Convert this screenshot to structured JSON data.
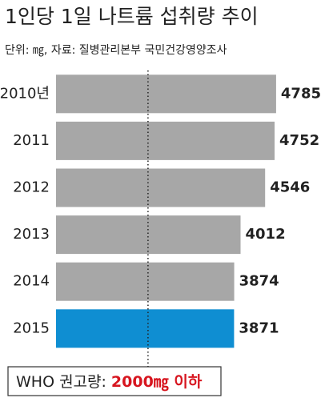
{
  "chart_data": {
    "type": "bar",
    "orientation": "horizontal",
    "title": "1인당 1일 나트륨 섭취량 추이",
    "subtitle": "단위: ㎎, 자료: 질병관리본부 국민건강영양조사",
    "categories": [
      "2010년",
      "2011",
      "2012",
      "2013",
      "2014",
      "2015"
    ],
    "values": [
      4785,
      4752,
      4546,
      4012,
      3874,
      3871
    ],
    "colors": [
      "#a7a7a7",
      "#a7a7a7",
      "#a7a7a7",
      "#a7a7a7",
      "#a7a7a7",
      "#0f8ed2"
    ],
    "xlim": [
      0,
      5500
    ],
    "reference_line": {
      "value": 2000,
      "label": "WHO 권고량:",
      "value_label": "2000㎎ 이하",
      "color": "#d7151f"
    }
  }
}
